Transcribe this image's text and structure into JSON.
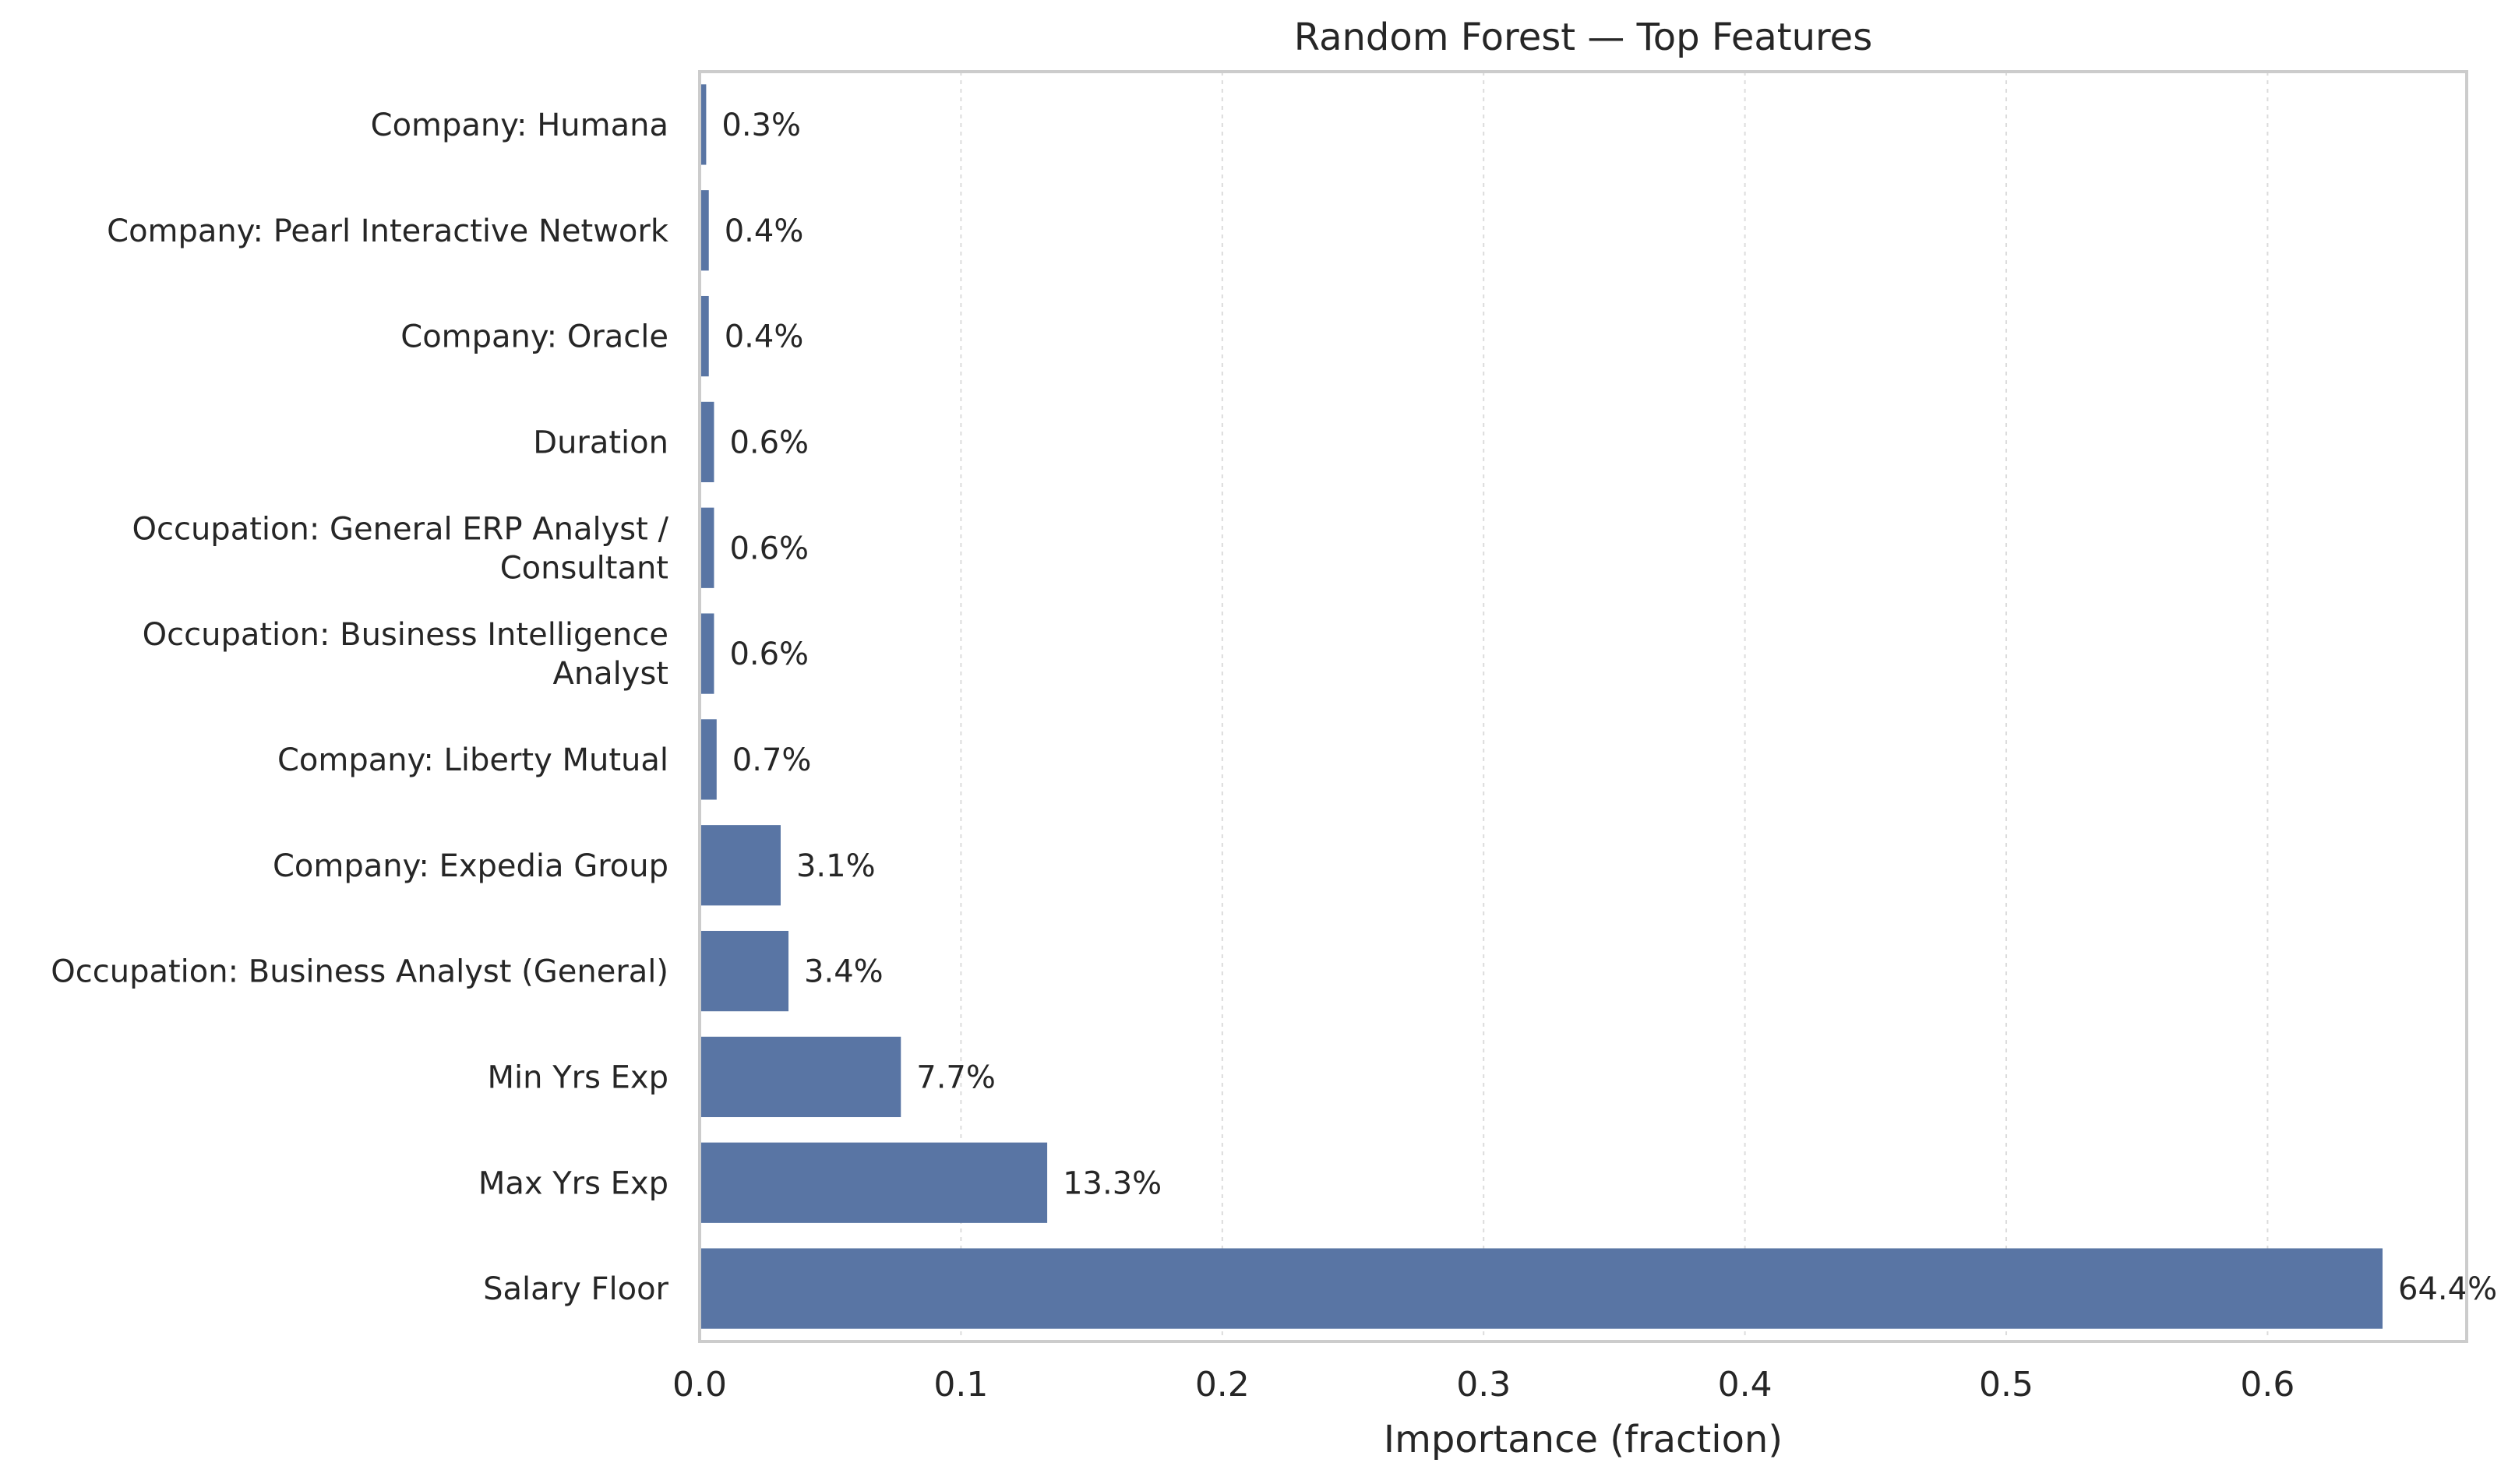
{
  "chart_data": {
    "type": "bar",
    "orientation": "horizontal",
    "title": "Random Forest — Top Features",
    "xlabel": "Importance (fraction)",
    "ylabel": "",
    "xlim": [
      0,
      0.6762
    ],
    "xticks": [
      0.0,
      0.1,
      0.2,
      0.3,
      0.4,
      0.5,
      0.6
    ],
    "xtick_labels": [
      "0.0",
      "0.1",
      "0.2",
      "0.3",
      "0.4",
      "0.5",
      "0.6"
    ],
    "grid": "x-dotted",
    "bar_color": "#5975a4",
    "categories": [
      [
        "Company: Humana"
      ],
      [
        "Company: Pearl Interactive Network"
      ],
      [
        "Company: Oracle"
      ],
      [
        "Duration"
      ],
      [
        "Occupation: General ERP Analyst /",
        "Consultant"
      ],
      [
        "Occupation: Business Intelligence",
        "Analyst"
      ],
      [
        "Company: Liberty Mutual"
      ],
      [
        "Company: Expedia Group"
      ],
      [
        "Occupation: Business Analyst (General)"
      ],
      [
        "Min Yrs Exp"
      ],
      [
        "Max Yrs Exp"
      ],
      [
        "Salary Floor"
      ]
    ],
    "values": [
      0.0025,
      0.0035,
      0.0035,
      0.0055,
      0.0055,
      0.0055,
      0.0065,
      0.031,
      0.034,
      0.077,
      0.133,
      0.644
    ],
    "value_labels": [
      "0.3%",
      "0.4%",
      "0.4%",
      "0.6%",
      "0.6%",
      "0.6%",
      "0.7%",
      "3.1%",
      "3.4%",
      "7.7%",
      "13.3%",
      "64.4%"
    ]
  }
}
